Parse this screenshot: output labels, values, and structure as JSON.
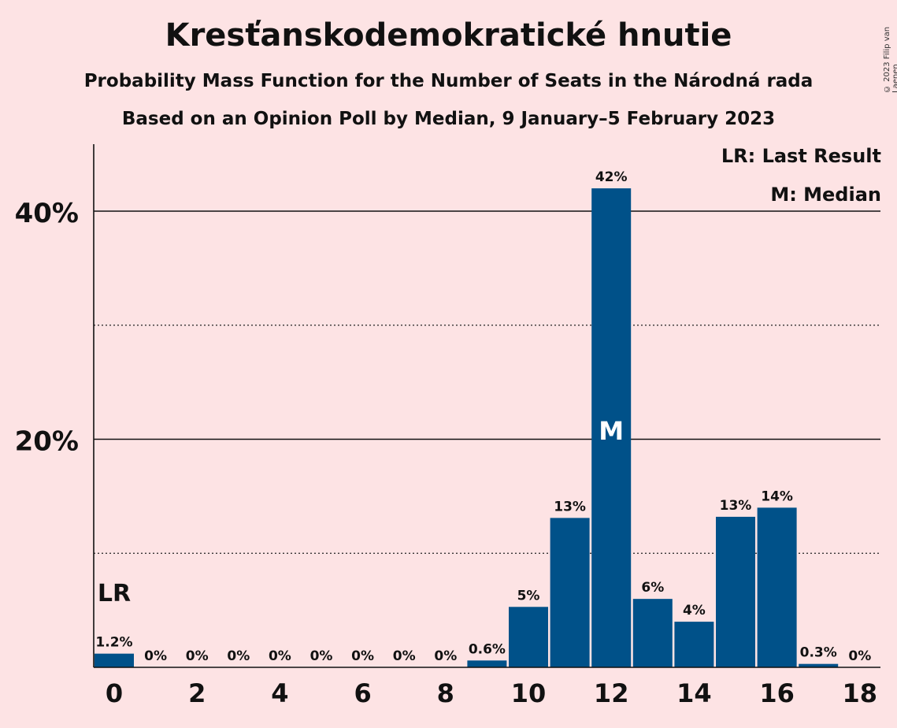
{
  "title": "Kresťanskodemokratické hnutie",
  "subtitle": "Probability Mass Function for the Number of Seats in the Národná rada",
  "subtitle2": "Based on an Opinion Poll by Median, 9 January–5 February 2023",
  "copyright": "© 2023 Filip van Laenen",
  "legend": {
    "lr": "LR: Last Result",
    "m": "M: Median"
  },
  "colors": {
    "background": "#fde3e4",
    "bar": "#005189",
    "text": "#111111"
  },
  "chart_data": {
    "type": "bar",
    "categories": [
      0,
      1,
      2,
      3,
      4,
      5,
      6,
      7,
      8,
      9,
      10,
      11,
      12,
      13,
      14,
      15,
      16,
      17,
      18
    ],
    "values": [
      1.2,
      0,
      0,
      0,
      0,
      0,
      0,
      0,
      0,
      0.6,
      5.3,
      13.1,
      42,
      6,
      4,
      13.2,
      14,
      0.3,
      0
    ],
    "value_labels": [
      "1.2%",
      "0%",
      "0%",
      "0%",
      "0%",
      "0%",
      "0%",
      "0%",
      "0%",
      "0.6%",
      "5%",
      "13%",
      "42%",
      "6%",
      "4%",
      "13%",
      "14%",
      "0.3%",
      "0%"
    ],
    "x_tick_labels": [
      "0",
      "2",
      "4",
      "6",
      "8",
      "10",
      "12",
      "14",
      "16",
      "18"
    ],
    "x_ticks": [
      0,
      2,
      4,
      6,
      8,
      10,
      12,
      14,
      16,
      18
    ],
    "y_ticks": [
      20,
      40
    ],
    "y_tick_labels": [
      "20%",
      "40%"
    ],
    "y_minor_ticks": [
      10,
      30
    ],
    "ylim": [
      0,
      46
    ],
    "last_result": 0,
    "last_result_label": "LR",
    "median": 12,
    "median_label": "M",
    "xlabel": "",
    "ylabel": ""
  }
}
